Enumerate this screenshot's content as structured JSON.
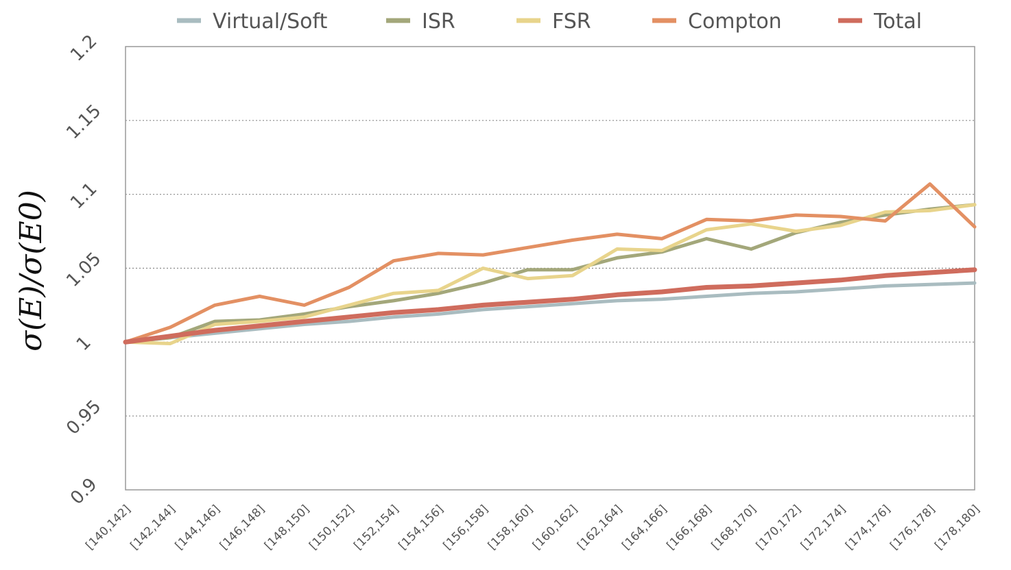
{
  "chart_data": {
    "type": "line",
    "title": "",
    "xlabel": "",
    "ylabel": "σ(E)/σ(E0)",
    "ylim": [
      0.9,
      1.2
    ],
    "yticks": [
      "0.9",
      "0.95",
      "1",
      "1.05",
      "1.1",
      "1.15",
      "1.2"
    ],
    "grid": "horizontal dotted",
    "legend_position": "top",
    "categories": [
      "[140,142]",
      "[142,144]",
      "[144,146]",
      "[146,148]",
      "[148,150]",
      "[150,152]",
      "[152,154]",
      "[154,156]",
      "[156,158]",
      "[158,160]",
      "[160,162]",
      "[162,164]",
      "[164,166]",
      "[166,168]",
      "[168,170]",
      "[170,172]",
      "[172,174]",
      "[174,176]",
      "[176,178]",
      "[178,180]"
    ],
    "series": [
      {
        "name": "Virtual/Soft",
        "color": "#a9bcc0",
        "values": [
          1.0,
          1.003,
          1.006,
          1.009,
          1.012,
          1.014,
          1.017,
          1.019,
          1.022,
          1.024,
          1.026,
          1.028,
          1.029,
          1.031,
          1.033,
          1.034,
          1.036,
          1.038,
          1.039,
          1.04
        ]
      },
      {
        "name": "ISR",
        "color": "#a3a77a",
        "values": [
          1.0,
          1.003,
          1.014,
          1.015,
          1.019,
          1.024,
          1.028,
          1.033,
          1.04,
          1.049,
          1.049,
          1.057,
          1.061,
          1.07,
          1.063,
          1.074,
          1.081,
          1.086,
          1.09,
          1.093
        ]
      },
      {
        "name": "FSR",
        "color": "#e8d48c",
        "values": [
          1.0,
          0.999,
          1.012,
          1.014,
          1.017,
          1.025,
          1.033,
          1.035,
          1.05,
          1.043,
          1.045,
          1.063,
          1.062,
          1.076,
          1.08,
          1.075,
          1.079,
          1.088,
          1.089,
          1.093
        ]
      },
      {
        "name": "Compton",
        "color": "#e39063",
        "values": [
          1.0,
          1.01,
          1.025,
          1.031,
          1.025,
          1.037,
          1.055,
          1.06,
          1.059,
          1.064,
          1.069,
          1.073,
          1.07,
          1.083,
          1.082,
          1.086,
          1.085,
          1.082,
          1.107,
          1.078
        ]
      },
      {
        "name": "Total",
        "color": "#cf6c5d",
        "values": [
          1.0,
          1.004,
          1.008,
          1.011,
          1.014,
          1.017,
          1.02,
          1.022,
          1.025,
          1.027,
          1.029,
          1.032,
          1.034,
          1.037,
          1.038,
          1.04,
          1.042,
          1.045,
          1.047,
          1.049
        ]
      }
    ]
  }
}
